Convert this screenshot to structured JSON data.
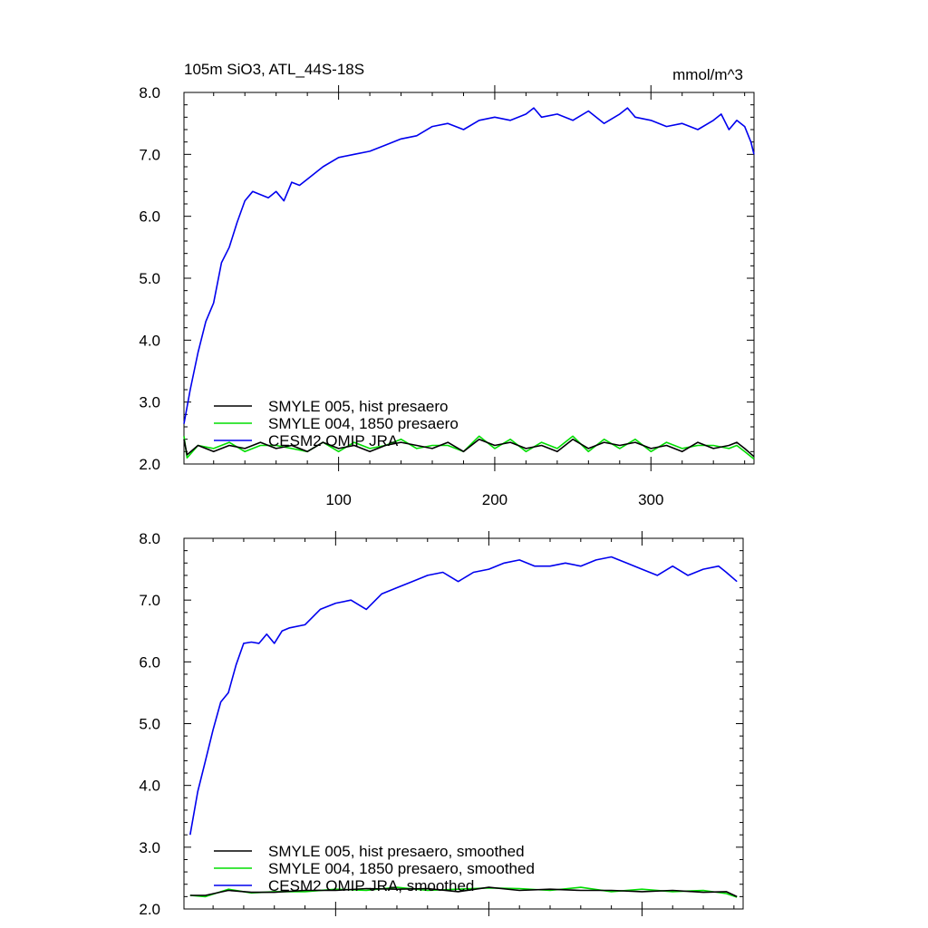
{
  "header": {
    "left_title": "105m SiO3, ATL_44S-18S",
    "right_title": "mmol/m^3"
  },
  "chart_data": [
    {
      "type": "line",
      "panel": "top",
      "xlim": [
        1,
        366
      ],
      "ylim": [
        2.0,
        8.0
      ],
      "x_ticks": [
        100,
        200,
        300
      ],
      "x_tick_labels": [
        "100",
        "200",
        "300"
      ],
      "y_ticks": [
        2.0,
        3.0,
        4.0,
        5.0,
        6.0,
        7.0,
        8.0
      ],
      "y_tick_labels": [
        "2.0",
        "3.0",
        "4.0",
        "5.0",
        "6.0",
        "7.0",
        "8.0"
      ],
      "legend_position": "bottom-left",
      "series": [
        {
          "name": "SMYLE 005, hist presaero",
          "color": "#000000",
          "x": [
            1,
            3,
            10,
            20,
            30,
            40,
            50,
            60,
            70,
            80,
            90,
            100,
            110,
            120,
            130,
            140,
            150,
            160,
            170,
            180,
            190,
            200,
            210,
            220,
            230,
            240,
            250,
            260,
            270,
            280,
            290,
            300,
            310,
            320,
            330,
            340,
            350,
            355,
            360,
            366
          ],
          "values": [
            2.4,
            2.15,
            2.3,
            2.2,
            2.3,
            2.25,
            2.35,
            2.25,
            2.3,
            2.2,
            2.35,
            2.25,
            2.3,
            2.2,
            2.3,
            2.35,
            2.3,
            2.25,
            2.35,
            2.2,
            2.4,
            2.3,
            2.35,
            2.25,
            2.3,
            2.2,
            2.4,
            2.25,
            2.35,
            2.3,
            2.35,
            2.25,
            2.3,
            2.2,
            2.35,
            2.25,
            2.3,
            2.35,
            2.25,
            2.12
          ]
        },
        {
          "name": "SMYLE 004, 1850 presaero",
          "color": "#00dd00",
          "x": [
            1,
            3,
            10,
            20,
            30,
            40,
            50,
            60,
            70,
            80,
            90,
            100,
            110,
            120,
            130,
            140,
            150,
            160,
            170,
            180,
            190,
            200,
            210,
            220,
            230,
            240,
            250,
            260,
            270,
            280,
            290,
            300,
            310,
            320,
            330,
            340,
            350,
            355,
            360,
            366
          ],
          "values": [
            2.45,
            2.1,
            2.3,
            2.25,
            2.35,
            2.2,
            2.3,
            2.3,
            2.25,
            2.2,
            2.35,
            2.2,
            2.35,
            2.25,
            2.3,
            2.4,
            2.25,
            2.3,
            2.3,
            2.2,
            2.45,
            2.25,
            2.4,
            2.2,
            2.35,
            2.25,
            2.45,
            2.2,
            2.4,
            2.25,
            2.4,
            2.2,
            2.35,
            2.25,
            2.3,
            2.3,
            2.25,
            2.3,
            2.2,
            2.08
          ]
        },
        {
          "name": "CESM2 OMIP JRA",
          "color": "#0000ee",
          "x": [
            1,
            5,
            10,
            15,
            20,
            25,
            30,
            35,
            40,
            45,
            50,
            55,
            60,
            65,
            70,
            75,
            80,
            90,
            100,
            110,
            120,
            130,
            140,
            150,
            160,
            170,
            180,
            190,
            200,
            210,
            220,
            225,
            230,
            240,
            250,
            260,
            270,
            280,
            285,
            290,
            300,
            310,
            320,
            330,
            340,
            345,
            350,
            355,
            360,
            364,
            366
          ],
          "values": [
            2.65,
            3.2,
            3.8,
            4.3,
            4.6,
            5.25,
            5.5,
            5.9,
            6.25,
            6.4,
            6.35,
            6.3,
            6.4,
            6.25,
            6.55,
            6.5,
            6.6,
            6.8,
            6.95,
            7.0,
            7.05,
            7.15,
            7.25,
            7.3,
            7.45,
            7.5,
            7.4,
            7.55,
            7.6,
            7.55,
            7.65,
            7.75,
            7.6,
            7.65,
            7.55,
            7.7,
            7.5,
            7.65,
            7.75,
            7.6,
            7.55,
            7.45,
            7.5,
            7.4,
            7.55,
            7.65,
            7.4,
            7.55,
            7.45,
            7.2,
            7.0
          ]
        }
      ]
    },
    {
      "type": "line",
      "panel": "bottom",
      "xlim": [
        1,
        366
      ],
      "ylim": [
        2.0,
        8.0
      ],
      "y_ticks": [
        2.0,
        3.0,
        4.0,
        5.0,
        6.0,
        7.0,
        8.0
      ],
      "y_tick_labels": [
        "2.0",
        "3.0",
        "4.0",
        "5.0",
        "6.0",
        "7.0",
        "8.0"
      ],
      "legend_position": "bottom-left",
      "series": [
        {
          "name": "SMYLE 005, hist presaero, smoothed",
          "color": "#000000",
          "x": [
            5,
            15,
            30,
            45,
            60,
            80,
            100,
            120,
            140,
            160,
            180,
            200,
            220,
            240,
            260,
            280,
            300,
            320,
            340,
            355,
            362
          ],
          "values": [
            2.22,
            2.22,
            2.3,
            2.27,
            2.27,
            2.3,
            2.3,
            2.33,
            2.32,
            2.33,
            2.28,
            2.35,
            2.3,
            2.32,
            2.3,
            2.3,
            2.28,
            2.3,
            2.27,
            2.28,
            2.2
          ]
        },
        {
          "name": "SMYLE 004, 1850 presaero, smoothed",
          "color": "#00dd00",
          "x": [
            5,
            15,
            30,
            45,
            60,
            80,
            100,
            120,
            140,
            160,
            180,
            200,
            220,
            240,
            260,
            280,
            300,
            320,
            340,
            355,
            362
          ],
          "values": [
            2.22,
            2.2,
            2.32,
            2.26,
            2.28,
            2.28,
            2.32,
            2.3,
            2.35,
            2.3,
            2.32,
            2.34,
            2.33,
            2.3,
            2.35,
            2.28,
            2.32,
            2.28,
            2.3,
            2.25,
            2.19
          ]
        },
        {
          "name": "CESM2 OMIP JRA, smoothed",
          "color": "#0000ee",
          "x": [
            5,
            10,
            15,
            20,
            25,
            30,
            35,
            40,
            45,
            50,
            55,
            60,
            65,
            70,
            80,
            90,
            100,
            110,
            120,
            130,
            140,
            150,
            160,
            170,
            180,
            190,
            200,
            210,
            220,
            230,
            240,
            250,
            260,
            270,
            280,
            290,
            300,
            310,
            320,
            330,
            340,
            350,
            355,
            362
          ],
          "values": [
            3.2,
            3.9,
            4.4,
            4.9,
            5.35,
            5.5,
            5.95,
            6.3,
            6.32,
            6.3,
            6.45,
            6.3,
            6.5,
            6.55,
            6.6,
            6.85,
            6.95,
            7.0,
            6.85,
            7.1,
            7.2,
            7.3,
            7.4,
            7.45,
            7.3,
            7.45,
            7.5,
            7.6,
            7.65,
            7.55,
            7.55,
            7.6,
            7.55,
            7.65,
            7.7,
            7.6,
            7.5,
            7.4,
            7.55,
            7.4,
            7.5,
            7.55,
            7.45,
            7.3
          ]
        }
      ]
    }
  ]
}
